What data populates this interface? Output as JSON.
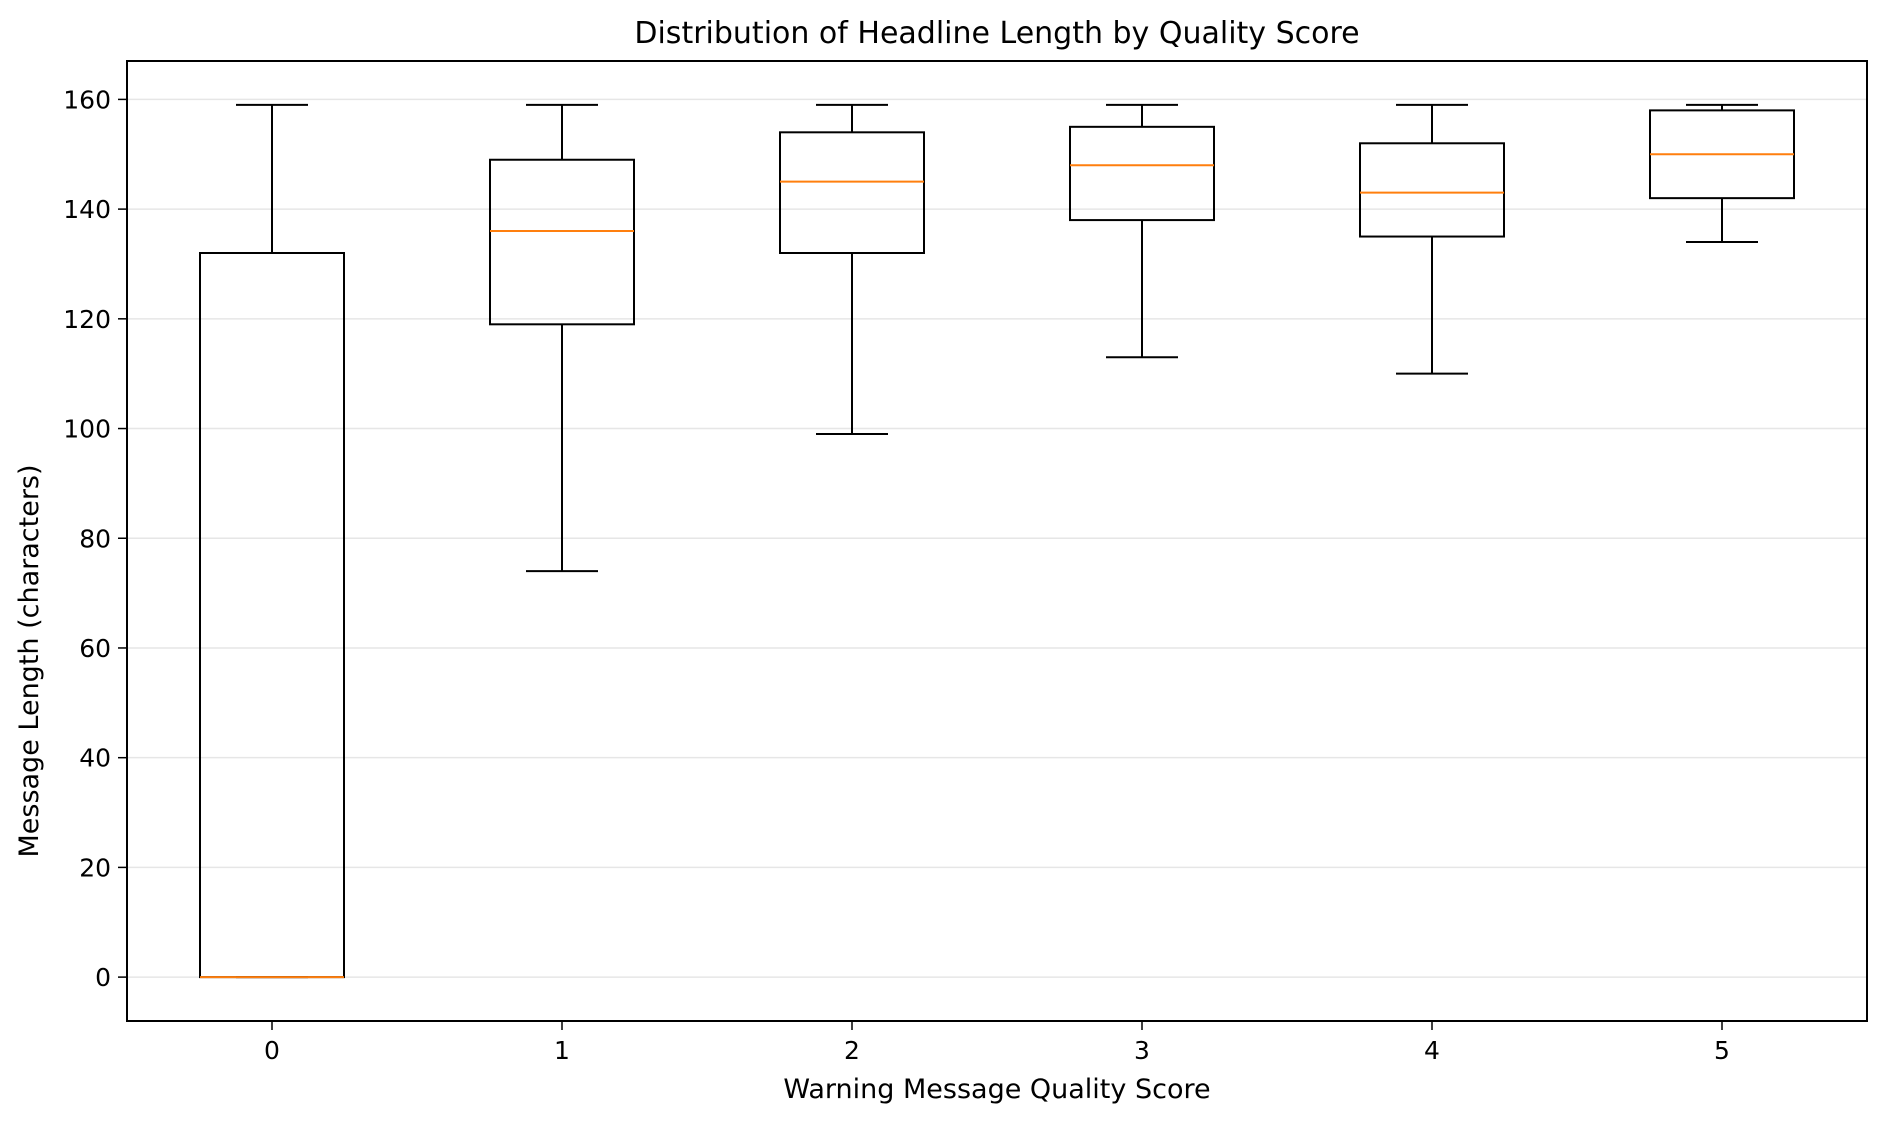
{
  "chart_data": {
    "type": "box",
    "title": "Distribution of Headline Length by Quality Score",
    "xlabel": "Warning Message Quality Score",
    "ylabel": "Message Length (characters)",
    "categories": [
      "0",
      "1",
      "2",
      "3",
      "4",
      "5"
    ],
    "ylim": [
      -8,
      167
    ],
    "yticks": [
      0,
      20,
      40,
      60,
      80,
      100,
      120,
      140,
      160
    ],
    "grid": "horizontal",
    "colors": {
      "box": "#000000",
      "median": "#ff7f0e",
      "grid": "#e6e6e6"
    },
    "boxes": [
      {
        "category": "0",
        "whisker_low": 0,
        "q1": 0,
        "median": 0,
        "q3": 132,
        "whisker_high": 159
      },
      {
        "category": "1",
        "whisker_low": 74,
        "q1": 119,
        "median": 136,
        "q3": 149,
        "whisker_high": 159
      },
      {
        "category": "2",
        "whisker_low": 99,
        "q1": 132,
        "median": 145,
        "q3": 154,
        "whisker_high": 159
      },
      {
        "category": "3",
        "whisker_low": 113,
        "q1": 138,
        "median": 148,
        "q3": 155,
        "whisker_high": 159
      },
      {
        "category": "4",
        "whisker_low": 110,
        "q1": 135,
        "median": 143,
        "q3": 152,
        "whisker_high": 159
      },
      {
        "category": "5",
        "whisker_low": 134,
        "q1": 142,
        "median": 150,
        "q3": 158,
        "whisker_high": 159
      }
    ]
  }
}
